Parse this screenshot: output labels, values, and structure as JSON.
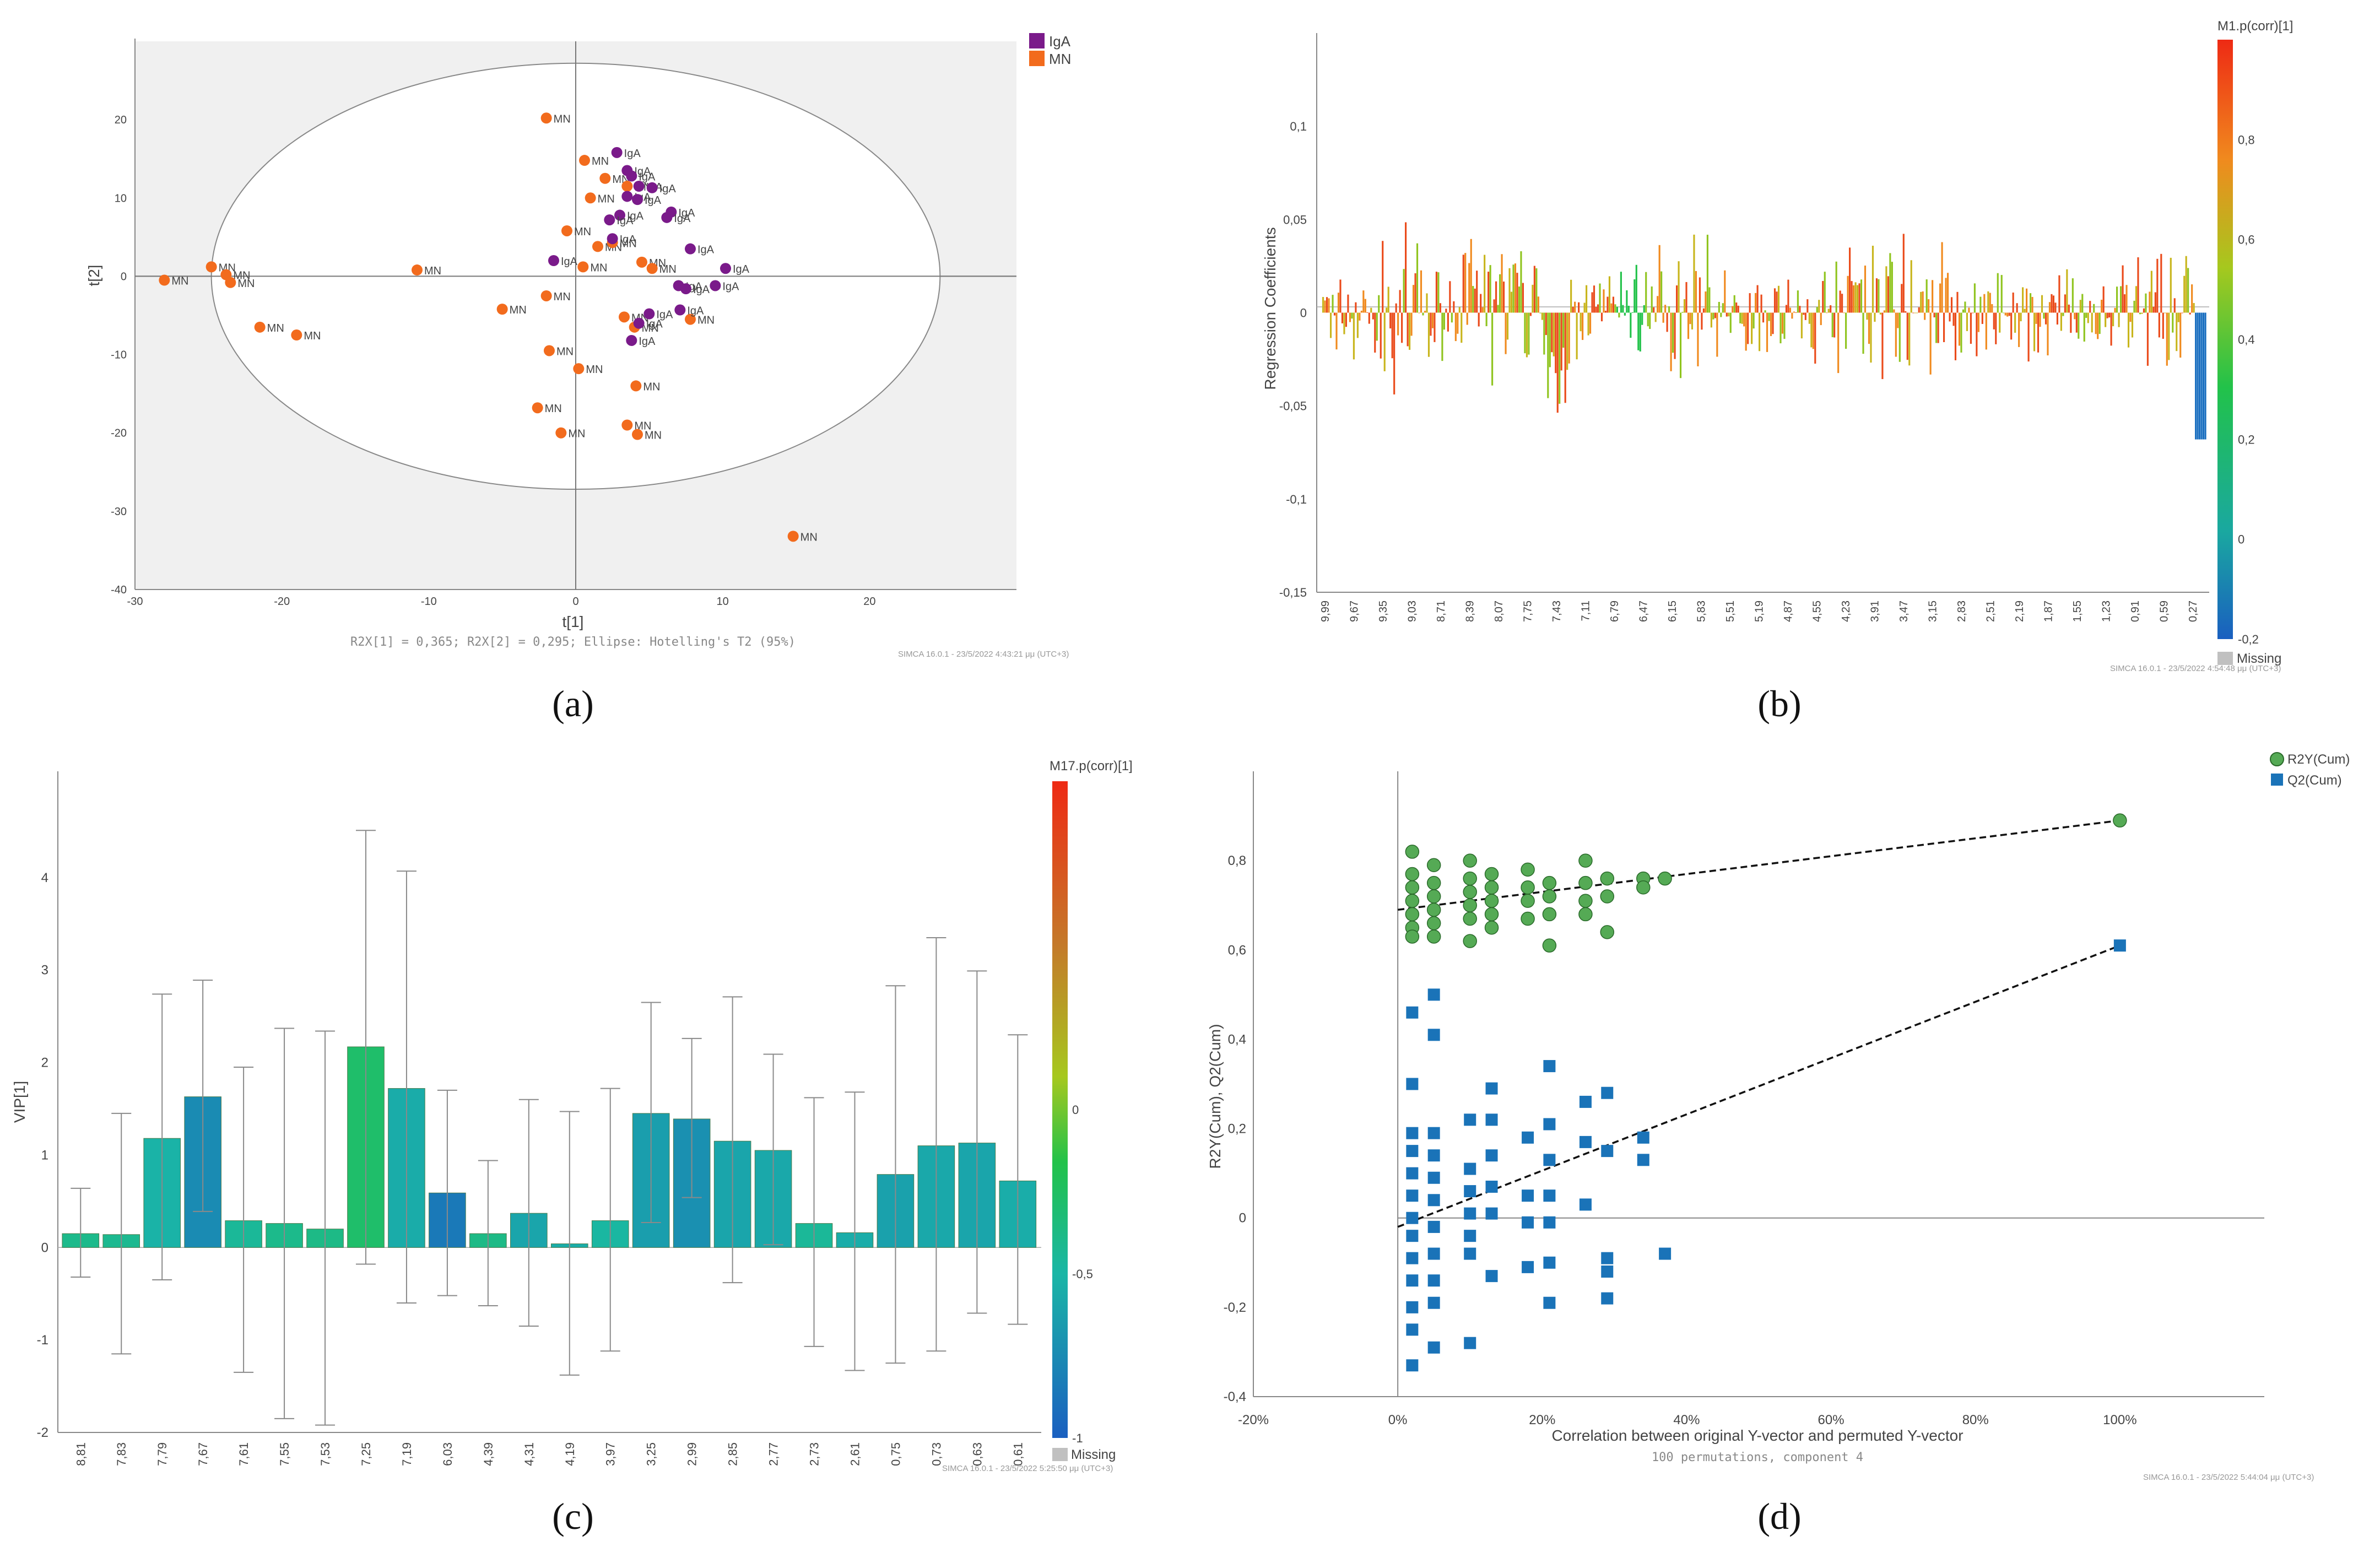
{
  "figure": {
    "colors": {
      "orange": "#f26b1d",
      "purple": "#7a1a8a",
      "green": "#55aa55",
      "blue": "#1a73b8"
    }
  },
  "chart_data": [
    {
      "id": "a",
      "type": "scatter",
      "caption": "(a)",
      "xlabel": "t[1]",
      "ylabel": "t[2]",
      "xlim": [
        -30,
        30
      ],
      "ylim": [
        -40,
        30
      ],
      "xticks": [
        "-30",
        "-20",
        "-10",
        "0",
        "10",
        "20"
      ],
      "yticks": [
        "-40",
        "-30",
        "-20",
        "-10",
        "0",
        "10",
        "20"
      ],
      "legend": [
        "IgA",
        "MN"
      ],
      "footer": "R2X[1] = 0,365; R2X[2] = 0,295; Ellipse: Hotelling's T2 (95%)",
      "software": "SIMCA 16.0.1 - 23/5/2022 4:43:21 μμ (UTC+3)",
      "ellipse": {
        "cx": 0,
        "cy": 0,
        "rx": 24.8,
        "ry": 27.2
      },
      "points": [
        {
          "x": -28,
          "y": -0.5,
          "g": "MN"
        },
        {
          "x": -24.8,
          "y": 1.2,
          "g": "MN"
        },
        {
          "x": -23.8,
          "y": 0.2,
          "g": "MN"
        },
        {
          "x": -23.5,
          "y": -0.8,
          "g": "MN"
        },
        {
          "x": -21.5,
          "y": -6.5,
          "g": "MN"
        },
        {
          "x": -19,
          "y": -7.5,
          "g": "MN"
        },
        {
          "x": -10.8,
          "y": 0.8,
          "g": "MN"
        },
        {
          "x": -5,
          "y": -4.2,
          "g": "MN"
        },
        {
          "x": -2,
          "y": 20.2,
          "g": "MN"
        },
        {
          "x": -2,
          "y": -2.5,
          "g": "MN"
        },
        {
          "x": -1.8,
          "y": -9.5,
          "g": "MN"
        },
        {
          "x": -0.6,
          "y": 5.8,
          "g": "MN"
        },
        {
          "x": 0.2,
          "y": -11.8,
          "g": "MN"
        },
        {
          "x": 0.6,
          "y": 14.8,
          "g": "MN"
        },
        {
          "x": 1,
          "y": 10,
          "g": "MN"
        },
        {
          "x": 1.5,
          "y": 3.8,
          "g": "MN"
        },
        {
          "x": 2,
          "y": 12.5,
          "g": "MN"
        },
        {
          "x": 2.5,
          "y": 4.3,
          "g": "MN"
        },
        {
          "x": 0.5,
          "y": 1.2,
          "g": "MN"
        },
        {
          "x": -2.6,
          "y": -16.8,
          "g": "MN"
        },
        {
          "x": -1,
          "y": -20,
          "g": "MN"
        },
        {
          "x": 3.3,
          "y": -5.2,
          "g": "MN"
        },
        {
          "x": 3.5,
          "y": -19,
          "g": "MN"
        },
        {
          "x": 4.1,
          "y": -14,
          "g": "MN"
        },
        {
          "x": 4.2,
          "y": -20.2,
          "g": "MN"
        },
        {
          "x": 4.5,
          "y": 1.8,
          "g": "MN"
        },
        {
          "x": 5.2,
          "y": 1,
          "g": "MN"
        },
        {
          "x": 4,
          "y": -6.5,
          "g": "MN"
        },
        {
          "x": 7.8,
          "y": -5.5,
          "g": "MN"
        },
        {
          "x": 14.8,
          "y": -33.2,
          "g": "MN"
        },
        {
          "x": 3.5,
          "y": 11.5,
          "g": "MN"
        },
        {
          "x": 2.8,
          "y": 15.8,
          "g": "IgA"
        },
        {
          "x": 3.5,
          "y": 13.5,
          "g": "IgA"
        },
        {
          "x": 3.8,
          "y": 12.8,
          "g": "IgA"
        },
        {
          "x": 4.3,
          "y": 11.5,
          "g": "IgA"
        },
        {
          "x": 5.2,
          "y": 11.3,
          "g": "IgA"
        },
        {
          "x": 3.5,
          "y": 10.2,
          "g": "IgA"
        },
        {
          "x": 4.2,
          "y": 9.8,
          "g": "IgA"
        },
        {
          "x": 3,
          "y": 7.8,
          "g": "IgA"
        },
        {
          "x": 2.3,
          "y": 7.2,
          "g": "IgA"
        },
        {
          "x": 6.5,
          "y": 8.2,
          "g": "IgA"
        },
        {
          "x": 6.2,
          "y": 7.5,
          "g": "IgA"
        },
        {
          "x": 2.5,
          "y": 4.8,
          "g": "IgA"
        },
        {
          "x": 7.8,
          "y": 3.5,
          "g": "IgA"
        },
        {
          "x": 10.2,
          "y": 1,
          "g": "IgA"
        },
        {
          "x": -1.5,
          "y": 2,
          "g": "IgA"
        },
        {
          "x": 7,
          "y": -1.2,
          "g": "IgA"
        },
        {
          "x": 7.5,
          "y": -1.6,
          "g": "IgA"
        },
        {
          "x": 9.5,
          "y": -1.2,
          "g": "IgA"
        },
        {
          "x": 7.1,
          "y": -4.3,
          "g": "IgA"
        },
        {
          "x": 5,
          "y": -4.8,
          "g": "IgA"
        },
        {
          "x": 4.3,
          "y": -6,
          "g": "IgA"
        },
        {
          "x": 3.8,
          "y": -8.2,
          "g": "IgA"
        }
      ]
    },
    {
      "id": "b",
      "type": "bar",
      "caption": "(b)",
      "ylabel": "Regression Coefficients",
      "ylim": [
        -0.15,
        0.15
      ],
      "yticks": [
        "-0,15",
        "-0,1",
        "-0,05",
        "0",
        "0,05",
        "0,1"
      ],
      "xticks": [
        "9,99",
        "9,67",
        "9,35",
        "9,03",
        "8,71",
        "8,39",
        "8,07",
        "7,75",
        "7,43",
        "7,11",
        "6,79",
        "6,47",
        "6,15",
        "5,83",
        "5,51",
        "5,19",
        "4,87",
        "4,55",
        "4,23",
        "3,91",
        "3,47",
        "3,15",
        "2,83",
        "2,51",
        "2,19",
        "1,87",
        "1,55",
        "1,23",
        "0,91",
        "0,59",
        "0,27"
      ],
      "colorbar": {
        "title": "M1.p(corr)[1]",
        "range": [
          -0.2,
          1.0
        ],
        "ticks": [
          "0,8",
          "0,6",
          "0,4",
          "0,2",
          "0",
          "-0,2"
        ],
        "missing": "Missing"
      },
      "software": "SIMCA 16.0.1 - 23/5/2022 4:54:48 μμ (UTC+3)",
      "note": "approximately 450 spectral bins of regression coefficients, extracted at coarse resolution"
    },
    {
      "id": "c",
      "type": "bar",
      "caption": "(c)",
      "ylabel": "VIP[1]",
      "ylim": [
        -2,
        5
      ],
      "yticks": [
        "-2",
        "-1",
        "0",
        "1",
        "2",
        "3",
        "4"
      ],
      "categories": [
        "8,81",
        "7,83",
        "7,79",
        "7,67",
        "7,61",
        "7,55",
        "7,53",
        "7,25",
        "7,19",
        "6,03",
        "4,39",
        "4,31",
        "4,19",
        "3,97",
        "3,25",
        "2,99",
        "2,85",
        "2,77",
        "2,73",
        "2,61",
        "0,75",
        "0,73",
        "0,63",
        "0,61"
      ],
      "values": [
        0.15,
        0.14,
        1.18,
        1.63,
        0.29,
        0.26,
        0.2,
        2.17,
        1.72,
        0.59,
        0.15,
        0.37,
        0.04,
        0.29,
        1.45,
        1.39,
        1.15,
        1.05,
        0.26,
        0.16,
        0.79,
        1.1,
        1.13,
        0.72
      ],
      "err_low": [
        -0.32,
        -1.15,
        -0.35,
        0.39,
        -1.35,
        -1.85,
        -1.92,
        -0.18,
        -0.6,
        -0.52,
        -0.63,
        -0.85,
        -1.38,
        -1.12,
        0.27,
        0.54,
        -0.38,
        0.03,
        -1.07,
        -1.33,
        -1.25,
        -1.12,
        -0.71,
        -0.83
      ],
      "err_high": [
        0.64,
        1.45,
        2.74,
        2.89,
        1.95,
        2.37,
        2.34,
        4.51,
        4.07,
        1.7,
        0.94,
        1.6,
        1.47,
        1.72,
        2.65,
        2.26,
        2.71,
        2.09,
        1.62,
        1.68,
        2.83,
        3.35,
        2.99,
        2.3
      ],
      "corr": [
        -0.4,
        -0.42,
        -0.52,
        -0.75,
        -0.45,
        -0.4,
        -0.38,
        -0.28,
        -0.56,
        -0.85,
        -0.38,
        -0.6,
        -0.55,
        -0.48,
        -0.64,
        -0.72,
        -0.6,
        -0.58,
        -0.45,
        -0.55,
        -0.62,
        -0.58,
        -0.6,
        -0.55
      ],
      "colorbar": {
        "title": "M17.p(corr)[1]",
        "range": [
          -1,
          1
        ],
        "ticks": [
          "0",
          "-0,5",
          "-1"
        ],
        "missing": "Missing"
      },
      "software": "SIMCA 16.0.1 - 23/5/2022 5:25:50 μμ (UTC+3)"
    },
    {
      "id": "d",
      "type": "scatter",
      "caption": "(d)",
      "xlabel": "Correlation between original Y-vector and permuted Y-vector",
      "subtitle": "100 permutations, component 4",
      "ylabel": "R2Y(Cum), Q2(Cum)",
      "xlim": [
        -0.2,
        1.2
      ],
      "ylim": [
        -0.4,
        1.0
      ],
      "xticks": [
        "-20%",
        "0%",
        "20%",
        "40%",
        "60%",
        "80%",
        "100%"
      ],
      "yticks": [
        "-0,4",
        "-0,2",
        "0",
        "0,2",
        "0,4",
        "0,6",
        "0,8"
      ],
      "legend": [
        "R2Y(Cum)",
        "Q2(Cum)"
      ],
      "software": "SIMCA 16.0.1 - 23/5/2022 5:44:04 μμ (UTC+3)",
      "r2_line": [
        [
          0,
          0.69
        ],
        [
          1,
          0.89
        ]
      ],
      "q2_line": [
        [
          0,
          -0.02
        ],
        [
          1,
          0.61
        ]
      ],
      "r2": [
        [
          0.02,
          0.82
        ],
        [
          0.02,
          0.77
        ],
        [
          0.02,
          0.74
        ],
        [
          0.02,
          0.71
        ],
        [
          0.02,
          0.68
        ],
        [
          0.02,
          0.65
        ],
        [
          0.02,
          0.63
        ],
        [
          0.05,
          0.79
        ],
        [
          0.05,
          0.75
        ],
        [
          0.05,
          0.72
        ],
        [
          0.05,
          0.69
        ],
        [
          0.05,
          0.66
        ],
        [
          0.05,
          0.63
        ],
        [
          0.1,
          0.8
        ],
        [
          0.1,
          0.76
        ],
        [
          0.1,
          0.73
        ],
        [
          0.1,
          0.7
        ],
        [
          0.1,
          0.67
        ],
        [
          0.1,
          0.62
        ],
        [
          0.13,
          0.77
        ],
        [
          0.13,
          0.74
        ],
        [
          0.13,
          0.71
        ],
        [
          0.13,
          0.68
        ],
        [
          0.13,
          0.65
        ],
        [
          0.18,
          0.78
        ],
        [
          0.18,
          0.74
        ],
        [
          0.18,
          0.71
        ],
        [
          0.18,
          0.67
        ],
        [
          0.21,
          0.75
        ],
        [
          0.21,
          0.72
        ],
        [
          0.21,
          0.68
        ],
        [
          0.21,
          0.61
        ],
        [
          0.26,
          0.8
        ],
        [
          0.26,
          0.75
        ],
        [
          0.26,
          0.71
        ],
        [
          0.26,
          0.68
        ],
        [
          0.29,
          0.76
        ],
        [
          0.29,
          0.72
        ],
        [
          0.29,
          0.64
        ],
        [
          0.34,
          0.76
        ],
        [
          0.34,
          0.74
        ],
        [
          0.37,
          0.76
        ],
        [
          1.0,
          0.89
        ]
      ],
      "q2": [
        [
          0.02,
          0.46
        ],
        [
          0.02,
          0.3
        ],
        [
          0.02,
          0.19
        ],
        [
          0.02,
          0.15
        ],
        [
          0.02,
          0.1
        ],
        [
          0.02,
          0.05
        ],
        [
          0.02,
          0.0
        ],
        [
          0.02,
          -0.04
        ],
        [
          0.02,
          -0.09
        ],
        [
          0.02,
          -0.14
        ],
        [
          0.02,
          -0.2
        ],
        [
          0.02,
          -0.25
        ],
        [
          0.02,
          -0.33
        ],
        [
          0.05,
          0.5
        ],
        [
          0.05,
          0.41
        ],
        [
          0.05,
          0.19
        ],
        [
          0.05,
          0.14
        ],
        [
          0.05,
          0.09
        ],
        [
          0.05,
          0.04
        ],
        [
          0.05,
          -0.02
        ],
        [
          0.05,
          -0.08
        ],
        [
          0.05,
          -0.14
        ],
        [
          0.05,
          -0.19
        ],
        [
          0.05,
          -0.29
        ],
        [
          0.1,
          0.22
        ],
        [
          0.1,
          0.11
        ],
        [
          0.1,
          0.06
        ],
        [
          0.1,
          0.01
        ],
        [
          0.1,
          -0.04
        ],
        [
          0.1,
          -0.08
        ],
        [
          0.1,
          -0.28
        ],
        [
          0.13,
          0.29
        ],
        [
          0.13,
          0.22
        ],
        [
          0.13,
          0.14
        ],
        [
          0.13,
          0.07
        ],
        [
          0.13,
          0.01
        ],
        [
          0.13,
          -0.13
        ],
        [
          0.18,
          0.18
        ],
        [
          0.18,
          0.05
        ],
        [
          0.18,
          -0.01
        ],
        [
          0.18,
          -0.11
        ],
        [
          0.21,
          0.34
        ],
        [
          0.21,
          0.21
        ],
        [
          0.21,
          0.13
        ],
        [
          0.21,
          0.05
        ],
        [
          0.21,
          -0.01
        ],
        [
          0.21,
          -0.1
        ],
        [
          0.21,
          -0.19
        ],
        [
          0.26,
          0.26
        ],
        [
          0.26,
          0.17
        ],
        [
          0.26,
          0.03
        ],
        [
          0.29,
          0.28
        ],
        [
          0.29,
          0.15
        ],
        [
          0.29,
          -0.09
        ],
        [
          0.29,
          -0.12
        ],
        [
          0.29,
          -0.18
        ],
        [
          0.34,
          0.18
        ],
        [
          0.34,
          0.13
        ],
        [
          0.37,
          -0.08
        ],
        [
          1.0,
          0.61
        ]
      ]
    }
  ]
}
